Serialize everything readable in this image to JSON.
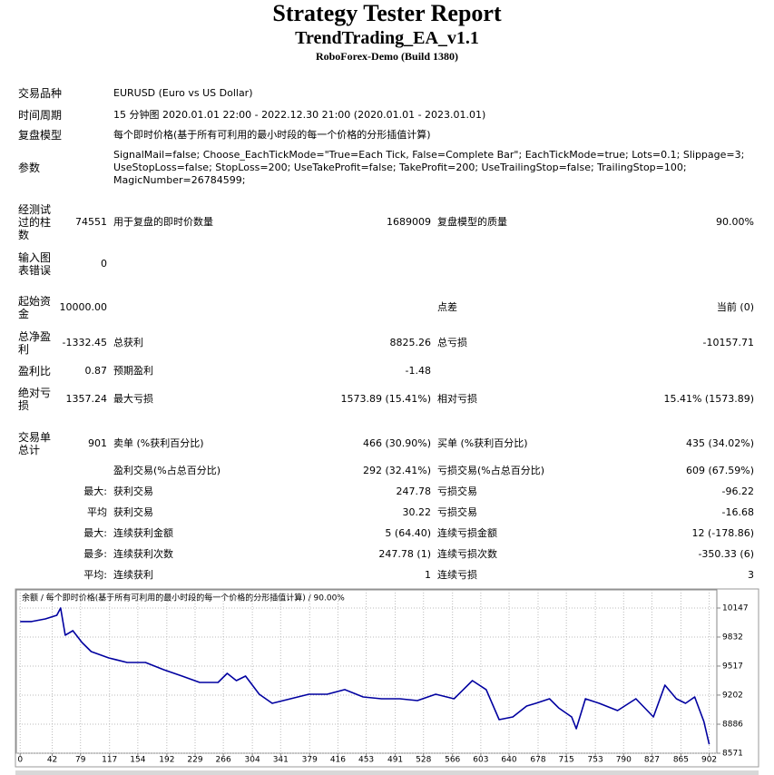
{
  "header": {
    "title": "Strategy Tester Report",
    "subtitle": "TrendTrading_EA_v1.1",
    "build": "RoboForex-Demo (Build 1380)"
  },
  "info_rows": [
    {
      "label": "交易品种",
      "value": "EURUSD (Euro vs US Dollar)"
    },
    {
      "label": "时间周期",
      "value": "15 分钟图 2020.01.01 22:00 - 2022.12.30 21:00 (2020.01.01 - 2023.01.01)"
    },
    {
      "label": "复盘模型",
      "value": "每个即时价格(基于所有可利用的最小时段的每一个价格的分形插值计算)"
    },
    {
      "label": "参数",
      "value": "SignalMail=false; Choose_EachTickMode=\"True=Each Tick, False=Complete Bar\"; EachTickMode=true; Lots=0.1; Slippage=3; UseStopLoss=false; StopLoss=200; UseTakeProfit=false; TakeProfit=200; UseTrailingStop=false; TrailingStop=100; MagicNumber=26784599;"
    }
  ],
  "stat_rows": [
    {
      "label": "经测试过的柱数",
      "value": "74551",
      "items": [
        {
          "name": "用于复盘的即时价数量",
          "value": "1689009"
        },
        {
          "name": "复盘模型的质量",
          "value": "90.00%"
        }
      ]
    },
    {
      "label": "输入图表错误",
      "value": "0",
      "items": []
    },
    {
      "label": "起始资金",
      "value": "10000.00",
      "items": [
        null,
        {
          "name": "点差",
          "value": "当前 (0)"
        }
      ]
    },
    {
      "label": "总净盈利",
      "value": "-1332.45",
      "items": [
        {
          "name": "总获利",
          "value": "8825.26"
        },
        {
          "name": "总亏损",
          "value": "-10157.71"
        }
      ]
    },
    {
      "label": "盈利比",
      "value": "0.87",
      "items": [
        {
          "name": "预期盈利",
          "value": "-1.48"
        }
      ]
    },
    {
      "label": "绝对亏损",
      "value": "1357.24",
      "items": [
        {
          "name": "最大亏损",
          "value": "1573.89 (15.41%)"
        },
        {
          "name": "相对亏损",
          "value": "15.41% (1573.89)"
        }
      ]
    },
    {
      "label": "交易单总计",
      "value": "901",
      "items": [
        {
          "name": "卖单 (%获利百分比)",
          "value": "466 (30.90%)"
        },
        {
          "name": "买单 (%获利百分比)",
          "value": "435 (34.02%)"
        }
      ]
    }
  ],
  "trade_rows": [
    {
      "items": [
        {
          "name": "盈利交易(%占总百分比)",
          "value": "292 (32.41%)"
        },
        {
          "name": "亏损交易(%占总百分比)",
          "value": "609 (67.59%)"
        }
      ]
    },
    {
      "prefix": "最大:",
      "items": [
        {
          "name": "获利交易",
          "value": "247.78"
        },
        {
          "name": "亏损交易",
          "value": "-96.22"
        }
      ]
    },
    {
      "prefix": "平均",
      "items": [
        {
          "name": "获利交易",
          "value": "30.22"
        },
        {
          "name": "亏损交易",
          "value": "-16.68"
        }
      ]
    },
    {
      "prefix": "最大:",
      "items": [
        {
          "name": "连续获利金额",
          "value": "5 (64.40)"
        },
        {
          "name": "连续亏损金额",
          "value": "12 (-178.86)"
        }
      ]
    },
    {
      "prefix": "最多:",
      "items": [
        {
          "name": "连续获利次数",
          "value": "247.78 (1)"
        },
        {
          "name": "连续亏损次数",
          "value": "-350.33 (6)"
        }
      ]
    },
    {
      "prefix": "平均:",
      "items": [
        {
          "name": "连续获利",
          "value": "1"
        },
        {
          "name": "连续亏损",
          "value": "3"
        }
      ]
    }
  ],
  "chart_data": {
    "type": "line",
    "title": "余额 / 每个即时价格(基于所有可利用的最小时段的每一个价格的分形插值计算) / 90.00%",
    "x": [
      0,
      15,
      33,
      48,
      53,
      59,
      69,
      81,
      93,
      116,
      140,
      164,
      188,
      212,
      235,
      259,
      271,
      283,
      295,
      313,
      330,
      354,
      378,
      402,
      425,
      449,
      473,
      497,
      520,
      544,
      568,
      592,
      610,
      627,
      645,
      663,
      675,
      693,
      705,
      722,
      728,
      740,
      758,
      782,
      806,
      829,
      844,
      859,
      871,
      883,
      895,
      902
    ],
    "values": [
      10000,
      10000,
      10029,
      10068,
      10147,
      9852,
      9901,
      9773,
      9674,
      9605,
      9556,
      9556,
      9477,
      9408,
      9339,
      9339,
      9438,
      9359,
      9408,
      9211,
      9113,
      9162,
      9211,
      9211,
      9261,
      9182,
      9162,
      9162,
      9142,
      9211,
      9162,
      9359,
      9261,
      8935,
      8965,
      9083,
      9113,
      9162,
      9063,
      8965,
      8837,
      9162,
      9113,
      9034,
      9162,
      8965,
      9310,
      9162,
      9113,
      9182,
      8916,
      8668
    ],
    "color": "#0000a0",
    "grid": true,
    "xlim": [
      -5,
      912
    ],
    "ylim": [
      8571,
      10344
    ],
    "xticks": [
      0,
      42,
      79,
      117,
      154,
      192,
      229,
      266,
      304,
      341,
      379,
      416,
      453,
      491,
      528,
      566,
      603,
      640,
      678,
      715,
      753,
      790,
      827,
      865,
      902
    ],
    "yticks": [
      8571,
      8886,
      9202,
      9517,
      9832,
      10147
    ]
  }
}
